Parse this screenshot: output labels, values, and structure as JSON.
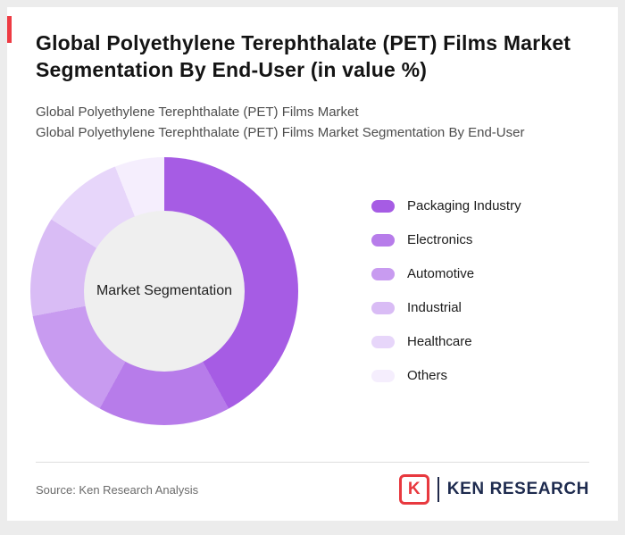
{
  "header": {
    "title": "Global Polyethylene Terephthalate (PET) Films Market Segmentation By End-User (in value %)",
    "subtitle_line1": "Global Polyethylene Terephthalate (PET) Films Market",
    "subtitle_line2": "Global Polyethylene Terephthalate (PET) Films Market Segmentation By End-User"
  },
  "chart_data": {
    "type": "pie",
    "subtype": "donut",
    "title": "Global Polyethylene Terephthalate (PET) Films Market Segmentation By End-User (in value %)",
    "center_label": "Market Segmentation",
    "categories": [
      "Packaging Industry",
      "Electronics",
      "Automotive",
      "Industrial",
      "Healthcare",
      "Others"
    ],
    "values": [
      42,
      16,
      14,
      12,
      10,
      6
    ],
    "unit": "%",
    "colors": [
      "#a65ce4",
      "#b77cea",
      "#c89bf0",
      "#d9bcf5",
      "#e7d6fa",
      "#f5eefd"
    ],
    "legend_position": "right",
    "start_angle_deg": 0,
    "direction": "clockwise"
  },
  "footer": {
    "source": "Source: Ken Research Analysis",
    "logo_letter": "K",
    "logo_text": "KEN RESEARCH"
  },
  "colors": {
    "accent_red": "#ee3b43",
    "logo_red": "#e8393f",
    "logo_navy": "#1d2a4e",
    "center_circle_bg": "#efefef"
  }
}
